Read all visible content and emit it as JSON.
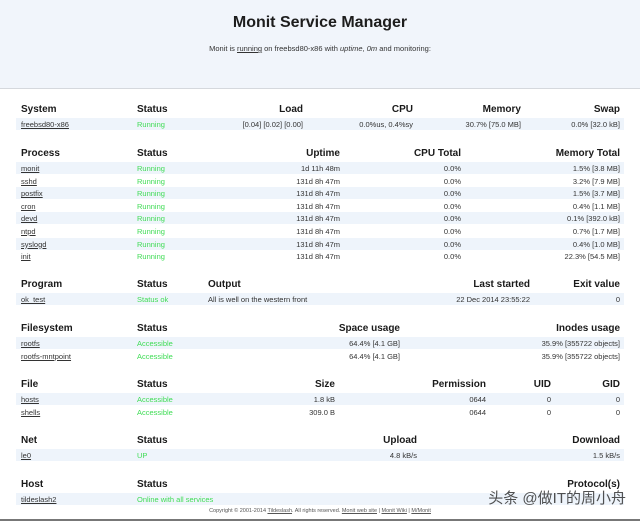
{
  "header": {
    "title": "Monit Service Manager",
    "subtitle": {
      "pre": "Monit is ",
      "running": "running",
      "mid": " on freebsd80-x86 with ",
      "uptime_label": "uptime",
      "sep": ", ",
      "uptime": "0m",
      "post": "  and monitoring:"
    }
  },
  "sections": [
    {
      "headers": [
        "System",
        "Status",
        "Load",
        "CPU",
        "Memory",
        "Swap"
      ],
      "rows": [
        [
          "freebsd80-x86",
          "Running",
          "[0.04] [0.02] [0.00]",
          "0.0%us, 0.4%sy",
          "30.7% [75.0 MB]",
          "0.0% [32.0 kB]"
        ]
      ]
    },
    {
      "headers": [
        "Process",
        "Status",
        "Uptime",
        "CPU Total",
        "Memory Total"
      ],
      "rows": [
        [
          "monit",
          "Running",
          "1d 11h 48m",
          "0.0%",
          "1.5% [3.8 MB]"
        ],
        [
          "sshd",
          "Running",
          "131d 8h 47m",
          "0.0%",
          "3.2% [7.9 MB]"
        ],
        [
          "postfix",
          "Running",
          "131d 8h 47m",
          "0.0%",
          "1.5% [3.7 MB]"
        ],
        [
          "cron",
          "Running",
          "131d 8h 47m",
          "0.0%",
          "0.4% [1.1 MB]"
        ],
        [
          "devd",
          "Running",
          "131d 8h 47m",
          "0.0%",
          "0.1% [392.0 kB]"
        ],
        [
          "ntpd",
          "Running",
          "131d 8h 47m",
          "0.0%",
          "0.7% [1.7 MB]"
        ],
        [
          "syslogd",
          "Running",
          "131d 8h 47m",
          "0.0%",
          "0.4% [1.0 MB]"
        ],
        [
          "init",
          "Running",
          "131d 8h 47m",
          "0.0%",
          "22.3% [54.5 MB]"
        ]
      ]
    },
    {
      "headers": [
        "Program",
        "Status",
        "Output",
        "Last started",
        "Exit value"
      ],
      "rows": [
        [
          "ok_test",
          "Status ok",
          "All is well on the western front",
          "22 Dec 2014 23:55:22",
          "0"
        ]
      ]
    },
    {
      "headers": [
        "Filesystem",
        "Status",
        "Space usage",
        "Inodes usage"
      ],
      "rows": [
        [
          "rootfs",
          "Accessible",
          "64.4% [4.1 GB]",
          "35.9% [355722 objects]"
        ],
        [
          "rootfs-mntpoint",
          "Accessible",
          "64.4% [4.1 GB]",
          "35.9% [355722 objects]"
        ]
      ]
    },
    {
      "headers": [
        "File",
        "Status",
        "Size",
        "Permission",
        "UID",
        "GID"
      ],
      "rows": [
        [
          "hosts",
          "Accessible",
          "1.8 kB",
          "0644",
          "0",
          "0"
        ],
        [
          "shells",
          "Accessible",
          "309.0 B",
          "0644",
          "0",
          "0"
        ]
      ]
    },
    {
      "headers": [
        "Net",
        "Status",
        "Upload",
        "Download"
      ],
      "rows": [
        [
          "le0",
          "UP",
          "4.8 kB/s",
          "1.5 kB/s"
        ]
      ]
    },
    {
      "headers": [
        "Host",
        "Status",
        "Protocol(s)"
      ],
      "rows": [
        [
          "tildeslash2",
          "Online with all services",
          ""
        ]
      ]
    }
  ],
  "footer": {
    "copyright": "Copyright © 2001-2014 ",
    "company": "Tildeslash",
    "rights": ". All rights reserved.  ",
    "links": [
      "Monit web site",
      "Monit Wiki",
      "M/Monit"
    ],
    "divider": " | "
  },
  "watermark": "头条 @做IT的周小舟",
  "colors": {
    "status_ok": "#3fdc55",
    "header_bg": "#f1f5fb",
    "row_stripe": "#eef4fb"
  }
}
